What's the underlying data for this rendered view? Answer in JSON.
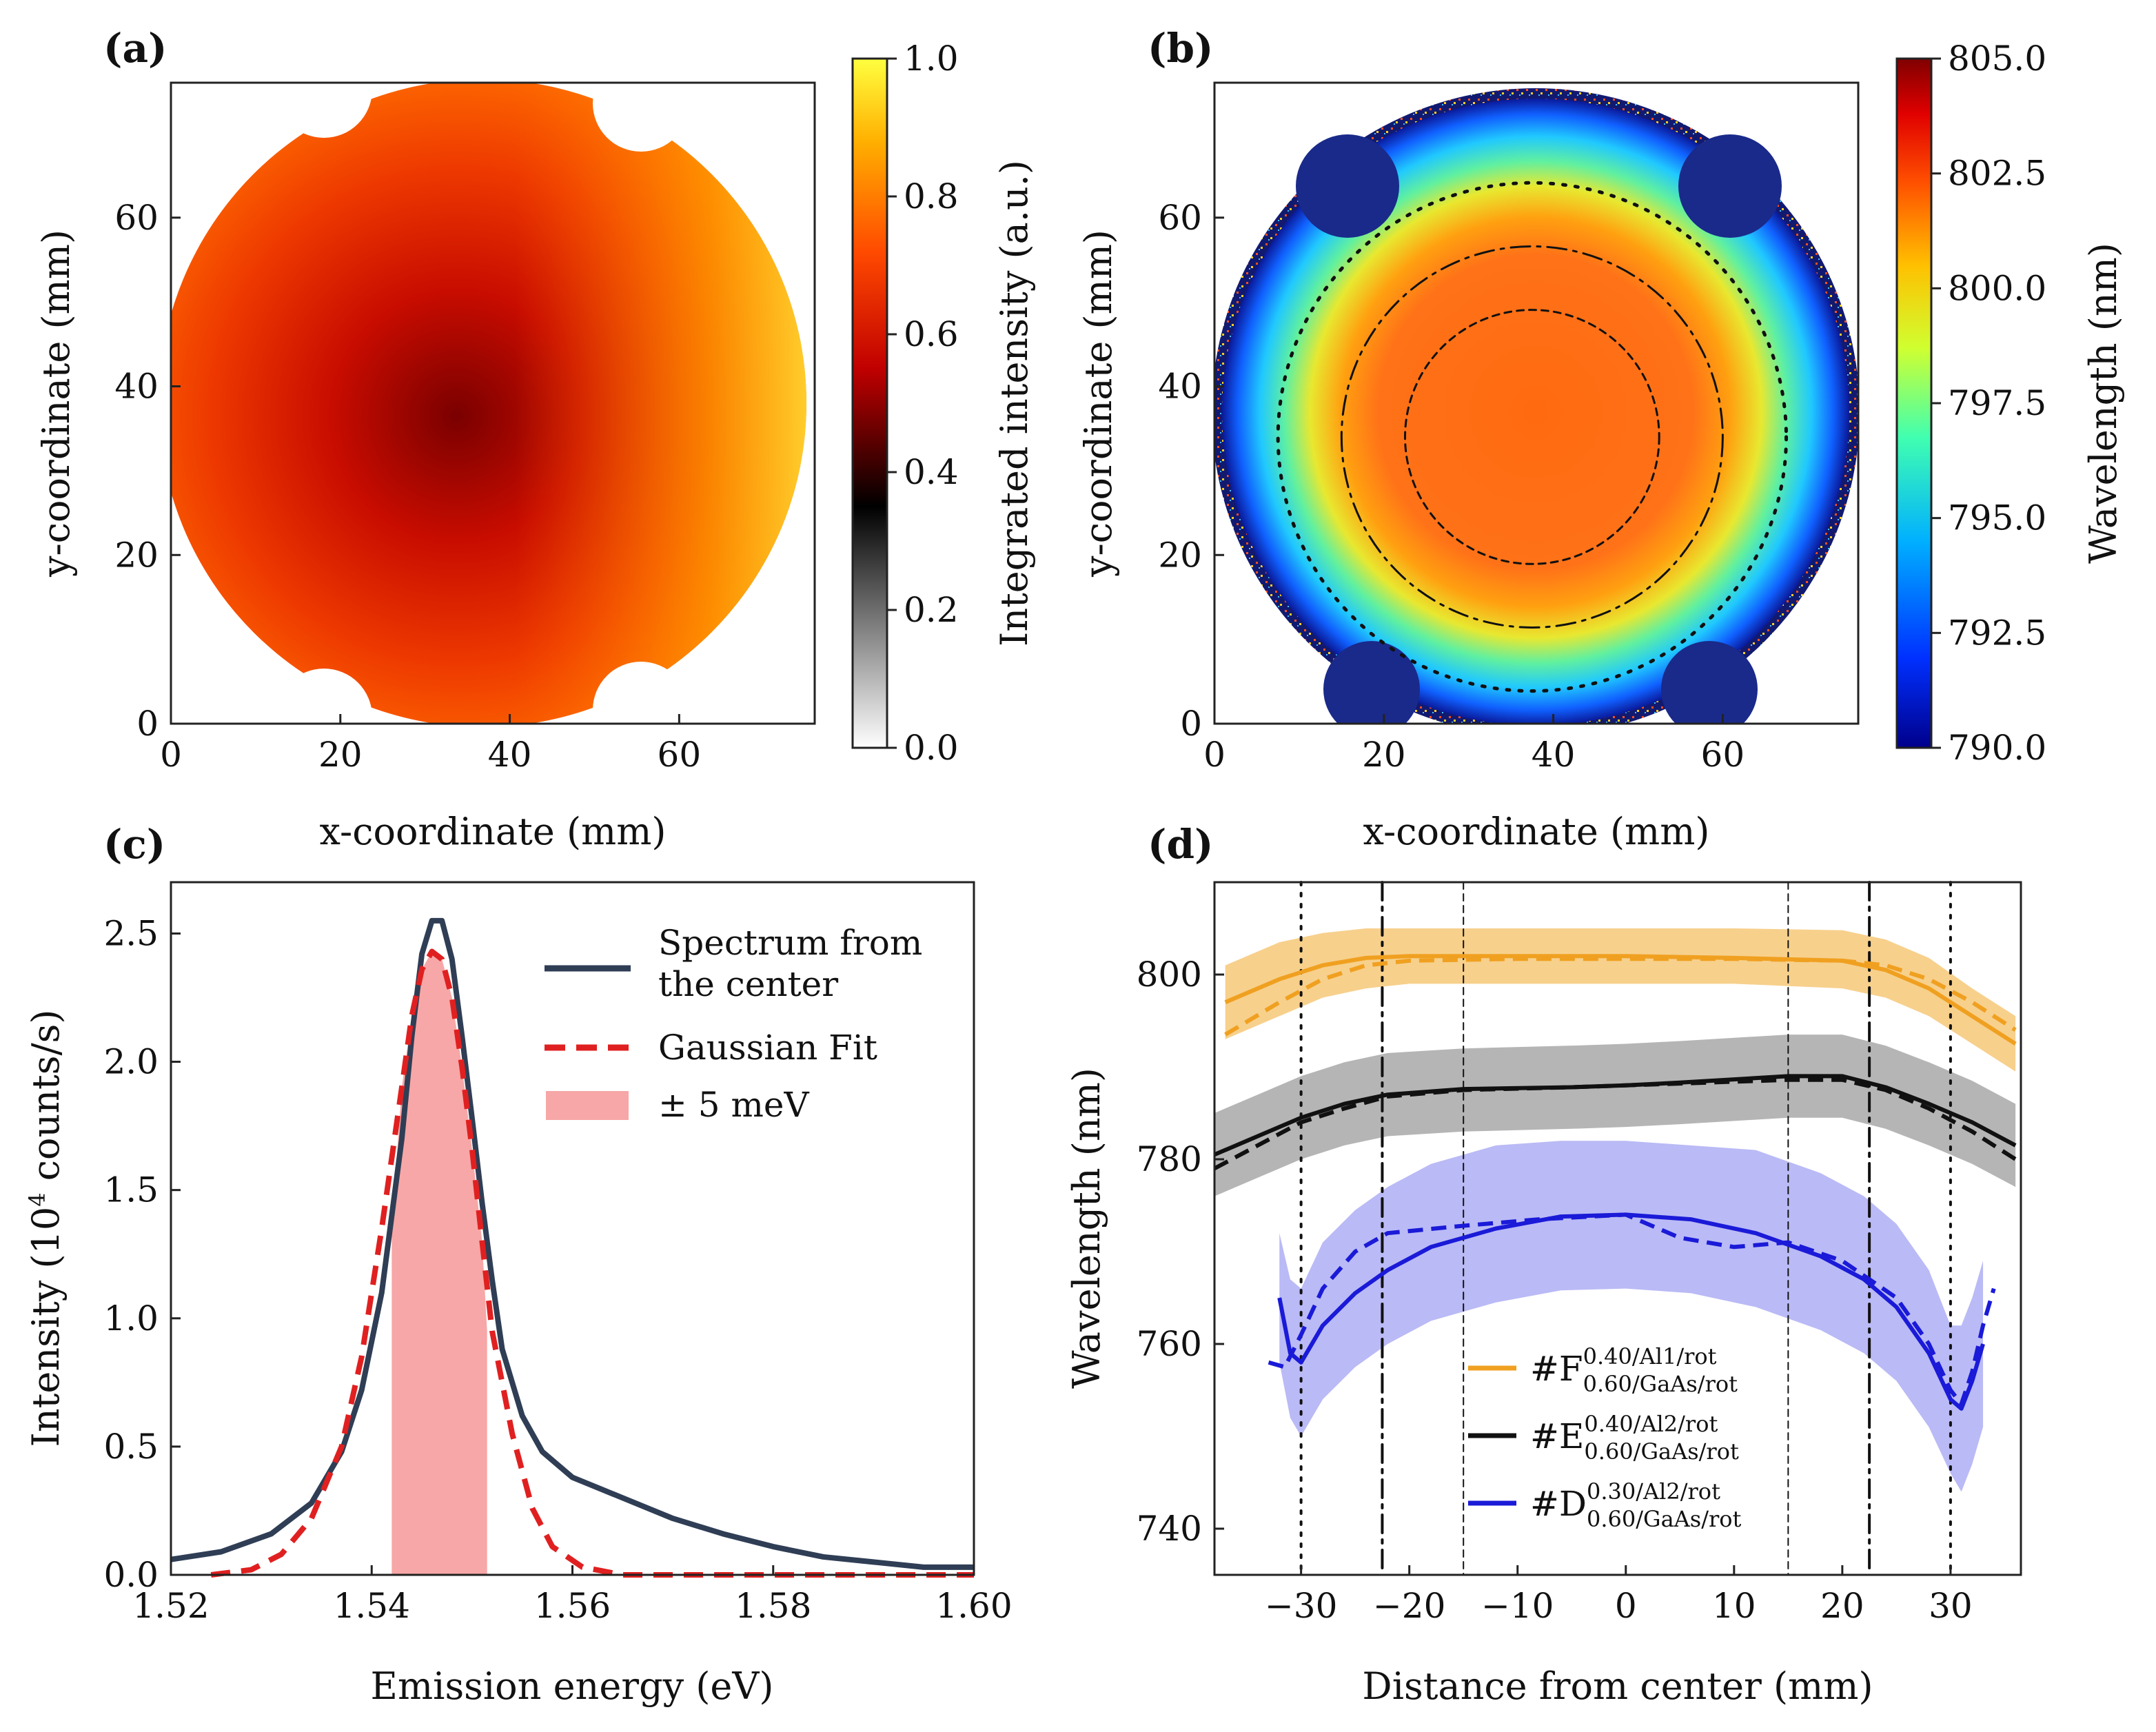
{
  "figure": {
    "panels": {
      "a": {
        "label": "(a)"
      },
      "b": {
        "label": "(b)"
      },
      "c": {
        "label": "(c)"
      },
      "d": {
        "label": "(d)"
      }
    }
  },
  "chart_data": [
    {
      "id": "a",
      "type": "heatmap",
      "title": "",
      "xlabel": "x-coordinate (mm)",
      "ylabel": "y-coordinate (mm)",
      "xlim": [
        0,
        76
      ],
      "ylim": [
        0,
        76
      ],
      "xticks": [
        0,
        20,
        40,
        60
      ],
      "yticks": [
        0,
        20,
        40,
        60
      ],
      "description_values": {
        "center_intensity_min": 0.42,
        "edge_intensity_max": 0.95,
        "wafer_center": [
          35,
          37
        ],
        "wafer_radius": 38
      },
      "colorbar": {
        "label": "Integrated intensity (a.u.)",
        "range": [
          0.0,
          1.0
        ],
        "ticks": [
          "0.0",
          "0.2",
          "0.4",
          "0.6",
          "0.8",
          "1.0"
        ],
        "colormap": [
          "#ffffff",
          "#000000",
          "#c00000",
          "#ff4a00",
          "#ffb000",
          "#ffff40"
        ]
      }
    },
    {
      "id": "b",
      "type": "heatmap",
      "title": "",
      "xlabel": "x-coordinate (mm)",
      "ylabel": "y-coordinate (mm)",
      "xlim": [
        0,
        76
      ],
      "ylim": [
        0,
        76
      ],
      "xticks": [
        0,
        20,
        40,
        60
      ],
      "yticks": [
        0,
        20,
        40,
        60
      ],
      "wafer_center": [
        37.5,
        34
      ],
      "circle_radii_mm": {
        "dashed": 15,
        "dashdot": 22.5,
        "dotted": 30
      },
      "colorbar": {
        "label": "Wavelength (nm)",
        "range": [
          790.0,
          805.0
        ],
        "ticks": [
          "790.0",
          "792.5",
          "795.0",
          "797.5",
          "800.0",
          "802.5",
          "805.0"
        ],
        "colormap": [
          "#00008b",
          "#0040ff",
          "#00c0ff",
          "#40ffb0",
          "#d0ff30",
          "#ffd000",
          "#ff6000",
          "#e00000",
          "#800000"
        ]
      }
    },
    {
      "id": "c",
      "type": "line",
      "xlabel": "Emission energy (eV)",
      "ylabel": "Intensity (10",
      "ylabel_sup": "4",
      "ylabel_tail": " counts/s)",
      "xlim": [
        1.52,
        1.6
      ],
      "ylim": [
        0.0,
        2.7
      ],
      "xticks": [
        "1.52",
        "1.54",
        "1.56",
        "1.58",
        "1.60"
      ],
      "yticks": [
        "0.0",
        "0.5",
        "1.0",
        "1.5",
        "2.0",
        "2.5"
      ],
      "series": [
        {
          "name": "Spectrum from the center",
          "color": "#2f3e55",
          "x": [
            1.52,
            1.525,
            1.53,
            1.534,
            1.537,
            1.539,
            1.541,
            1.543,
            1.544,
            1.545,
            1.546,
            1.547,
            1.548,
            1.549,
            1.55,
            1.551,
            1.552,
            1.553,
            1.555,
            1.557,
            1.56,
            1.565,
            1.57,
            1.575,
            1.58,
            1.585,
            1.59,
            1.595,
            1.6
          ],
          "y": [
            0.06,
            0.09,
            0.16,
            0.28,
            0.48,
            0.72,
            1.1,
            1.7,
            2.1,
            2.42,
            2.55,
            2.55,
            2.4,
            2.1,
            1.78,
            1.45,
            1.15,
            0.88,
            0.62,
            0.48,
            0.38,
            0.3,
            0.22,
            0.16,
            0.11,
            0.07,
            0.05,
            0.03,
            0.03
          ]
        },
        {
          "name": "Gaussian Fit",
          "color": "#e02020",
          "dashed": true,
          "x": [
            1.524,
            1.528,
            1.531,
            1.534,
            1.537,
            1.539,
            1.541,
            1.543,
            1.544,
            1.545,
            1.546,
            1.547,
            1.548,
            1.549,
            1.55,
            1.551,
            1.552,
            1.554,
            1.556,
            1.558,
            1.561,
            1.565,
            1.575,
            1.59,
            1.6
          ],
          "y": [
            0.0,
            0.02,
            0.08,
            0.22,
            0.5,
            0.85,
            1.35,
            1.9,
            2.18,
            2.36,
            2.43,
            2.4,
            2.25,
            1.98,
            1.66,
            1.3,
            0.95,
            0.55,
            0.26,
            0.11,
            0.03,
            0.0,
            0.0,
            0.0,
            0.0
          ]
        }
      ],
      "band": {
        "name": "± 5 meV",
        "x0": 1.542,
        "x1": 1.5515,
        "color": "#f7a7a7"
      },
      "legend": [
        {
          "label": "Spectrum from",
          "label2": " the center"
        },
        {
          "label": "Gaussian Fit"
        },
        {
          "label": "± 5 meV"
        }
      ]
    },
    {
      "id": "d",
      "type": "line",
      "xlabel": "Distance from center (mm)",
      "ylabel": "Wavelength (nm)",
      "xlim": [
        -38,
        36.5
      ],
      "ylim": [
        735,
        810
      ],
      "xticks": [
        "−30",
        "−20",
        "−10",
        "0",
        "10",
        "20",
        "30"
      ],
      "xtick_values": [
        -30,
        -20,
        -10,
        0,
        10,
        20,
        30
      ],
      "yticks": [
        "740",
        "760",
        "780",
        "800"
      ],
      "ytick_values": [
        740,
        760,
        780,
        800
      ],
      "vlines": [
        {
          "x": -30,
          "style": "dotted"
        },
        {
          "x": 30,
          "style": "dotted"
        },
        {
          "x": -22.5,
          "style": "dashdot"
        },
        {
          "x": 22.5,
          "style": "dashdot"
        },
        {
          "x": -15,
          "style": "dashed"
        },
        {
          "x": 15,
          "style": "dashed"
        }
      ],
      "series": [
        {
          "name": "F",
          "sup": "0.40/Al1/rot",
          "sub": "0.60/GaAs/rot",
          "color": "#f0a020",
          "band_color": "#f6c878",
          "x": [
            -37,
            -32,
            -28,
            -24,
            -20,
            -10,
            0,
            10,
            20,
            24,
            28,
            32,
            36
          ],
          "y": [
            797,
            799.5,
            801,
            801.8,
            802,
            802,
            802,
            801.8,
            801.5,
            800.5,
            798.5,
            795.5,
            792.5
          ],
          "lower": [
            793,
            795.5,
            797.5,
            798.5,
            799,
            799,
            799,
            799,
            798.5,
            797.5,
            795.5,
            792.5,
            789.5
          ],
          "upper": [
            801,
            803.5,
            804.5,
            805,
            805,
            805,
            805,
            805,
            804.8,
            803.8,
            801.8,
            798.5,
            795.5
          ],
          "x2": [
            -37,
            -32,
            -28,
            -24,
            -20,
            -10,
            0,
            10,
            20,
            24,
            28,
            32,
            36
          ],
          "y2": [
            793.5,
            797,
            799.5,
            801,
            801.5,
            801.7,
            801.7,
            801.7,
            801.5,
            801,
            799.5,
            797,
            794
          ]
        },
        {
          "name": "E",
          "sup": "0.40/Al2/rot",
          "sub": "0.60/GaAs/rot",
          "color": "#111111",
          "band_color": "#a8a8a8",
          "x": [
            -38,
            -34,
            -30,
            -26,
            -22,
            -15,
            -5,
            0,
            5,
            15,
            20,
            24,
            28,
            32,
            36
          ],
          "y": [
            780.5,
            782.5,
            784.5,
            786,
            787,
            787.6,
            787.8,
            788,
            788.3,
            789,
            789,
            787.8,
            786,
            784,
            781.5
          ],
          "lower": [
            776,
            778,
            780,
            781.5,
            782.5,
            783,
            783.3,
            783.5,
            783.8,
            784.5,
            784.5,
            783.3,
            781.5,
            779.5,
            777
          ],
          "upper": [
            785,
            787,
            789,
            790.5,
            791.5,
            792,
            792.3,
            792.5,
            792.8,
            793.5,
            793.5,
            792.3,
            790.5,
            788.5,
            786
          ],
          "x2": [
            -38,
            -34,
            -30,
            -26,
            -22,
            -15,
            -5,
            0,
            5,
            15,
            20,
            24,
            28,
            32,
            36
          ],
          "y2": [
            779,
            781.5,
            784,
            785.5,
            786.8,
            787.5,
            787.8,
            788,
            788.2,
            788.6,
            788.6,
            787.5,
            785.5,
            783,
            780
          ]
        },
        {
          "name": "D",
          "sup": "0.30/Al2/rot",
          "sub": "0.60/GaAs/rot",
          "color": "#1a1ad8",
          "band_color": "#aeaef5",
          "x": [
            -32,
            -31,
            -30,
            -28,
            -25,
            -22,
            -18,
            -12,
            -6,
            0,
            6,
            12,
            18,
            22,
            25,
            28,
            30,
            31,
            32,
            33
          ],
          "y": [
            765,
            759,
            758,
            762,
            765.5,
            768,
            770.5,
            772.5,
            773.8,
            774,
            773.5,
            772,
            769.5,
            767,
            764,
            759,
            754,
            753,
            756,
            760
          ],
          "lower": [
            758,
            752,
            750,
            754,
            757.5,
            760,
            762.5,
            764.5,
            765.8,
            766,
            765.5,
            764,
            761.5,
            759,
            756,
            751,
            746,
            744,
            747,
            751
          ],
          "upper": [
            772,
            767,
            766,
            771,
            774.5,
            777,
            779.5,
            781.5,
            782,
            782,
            781.5,
            781,
            778.5,
            776,
            773,
            768,
            762,
            762,
            765,
            769
          ],
          "x2": [
            -33,
            -31.5,
            -30,
            -28,
            -25,
            -22,
            -15,
            -8,
            0,
            5,
            10,
            15,
            20,
            25,
            28,
            30,
            31,
            32,
            33,
            34
          ],
          "y2": [
            758,
            757.5,
            761,
            766,
            770,
            772,
            772.8,
            773.5,
            774,
            771.5,
            770.5,
            771,
            769,
            765,
            760,
            755,
            753.5,
            757,
            762,
            766
          ]
        }
      ]
    }
  ]
}
